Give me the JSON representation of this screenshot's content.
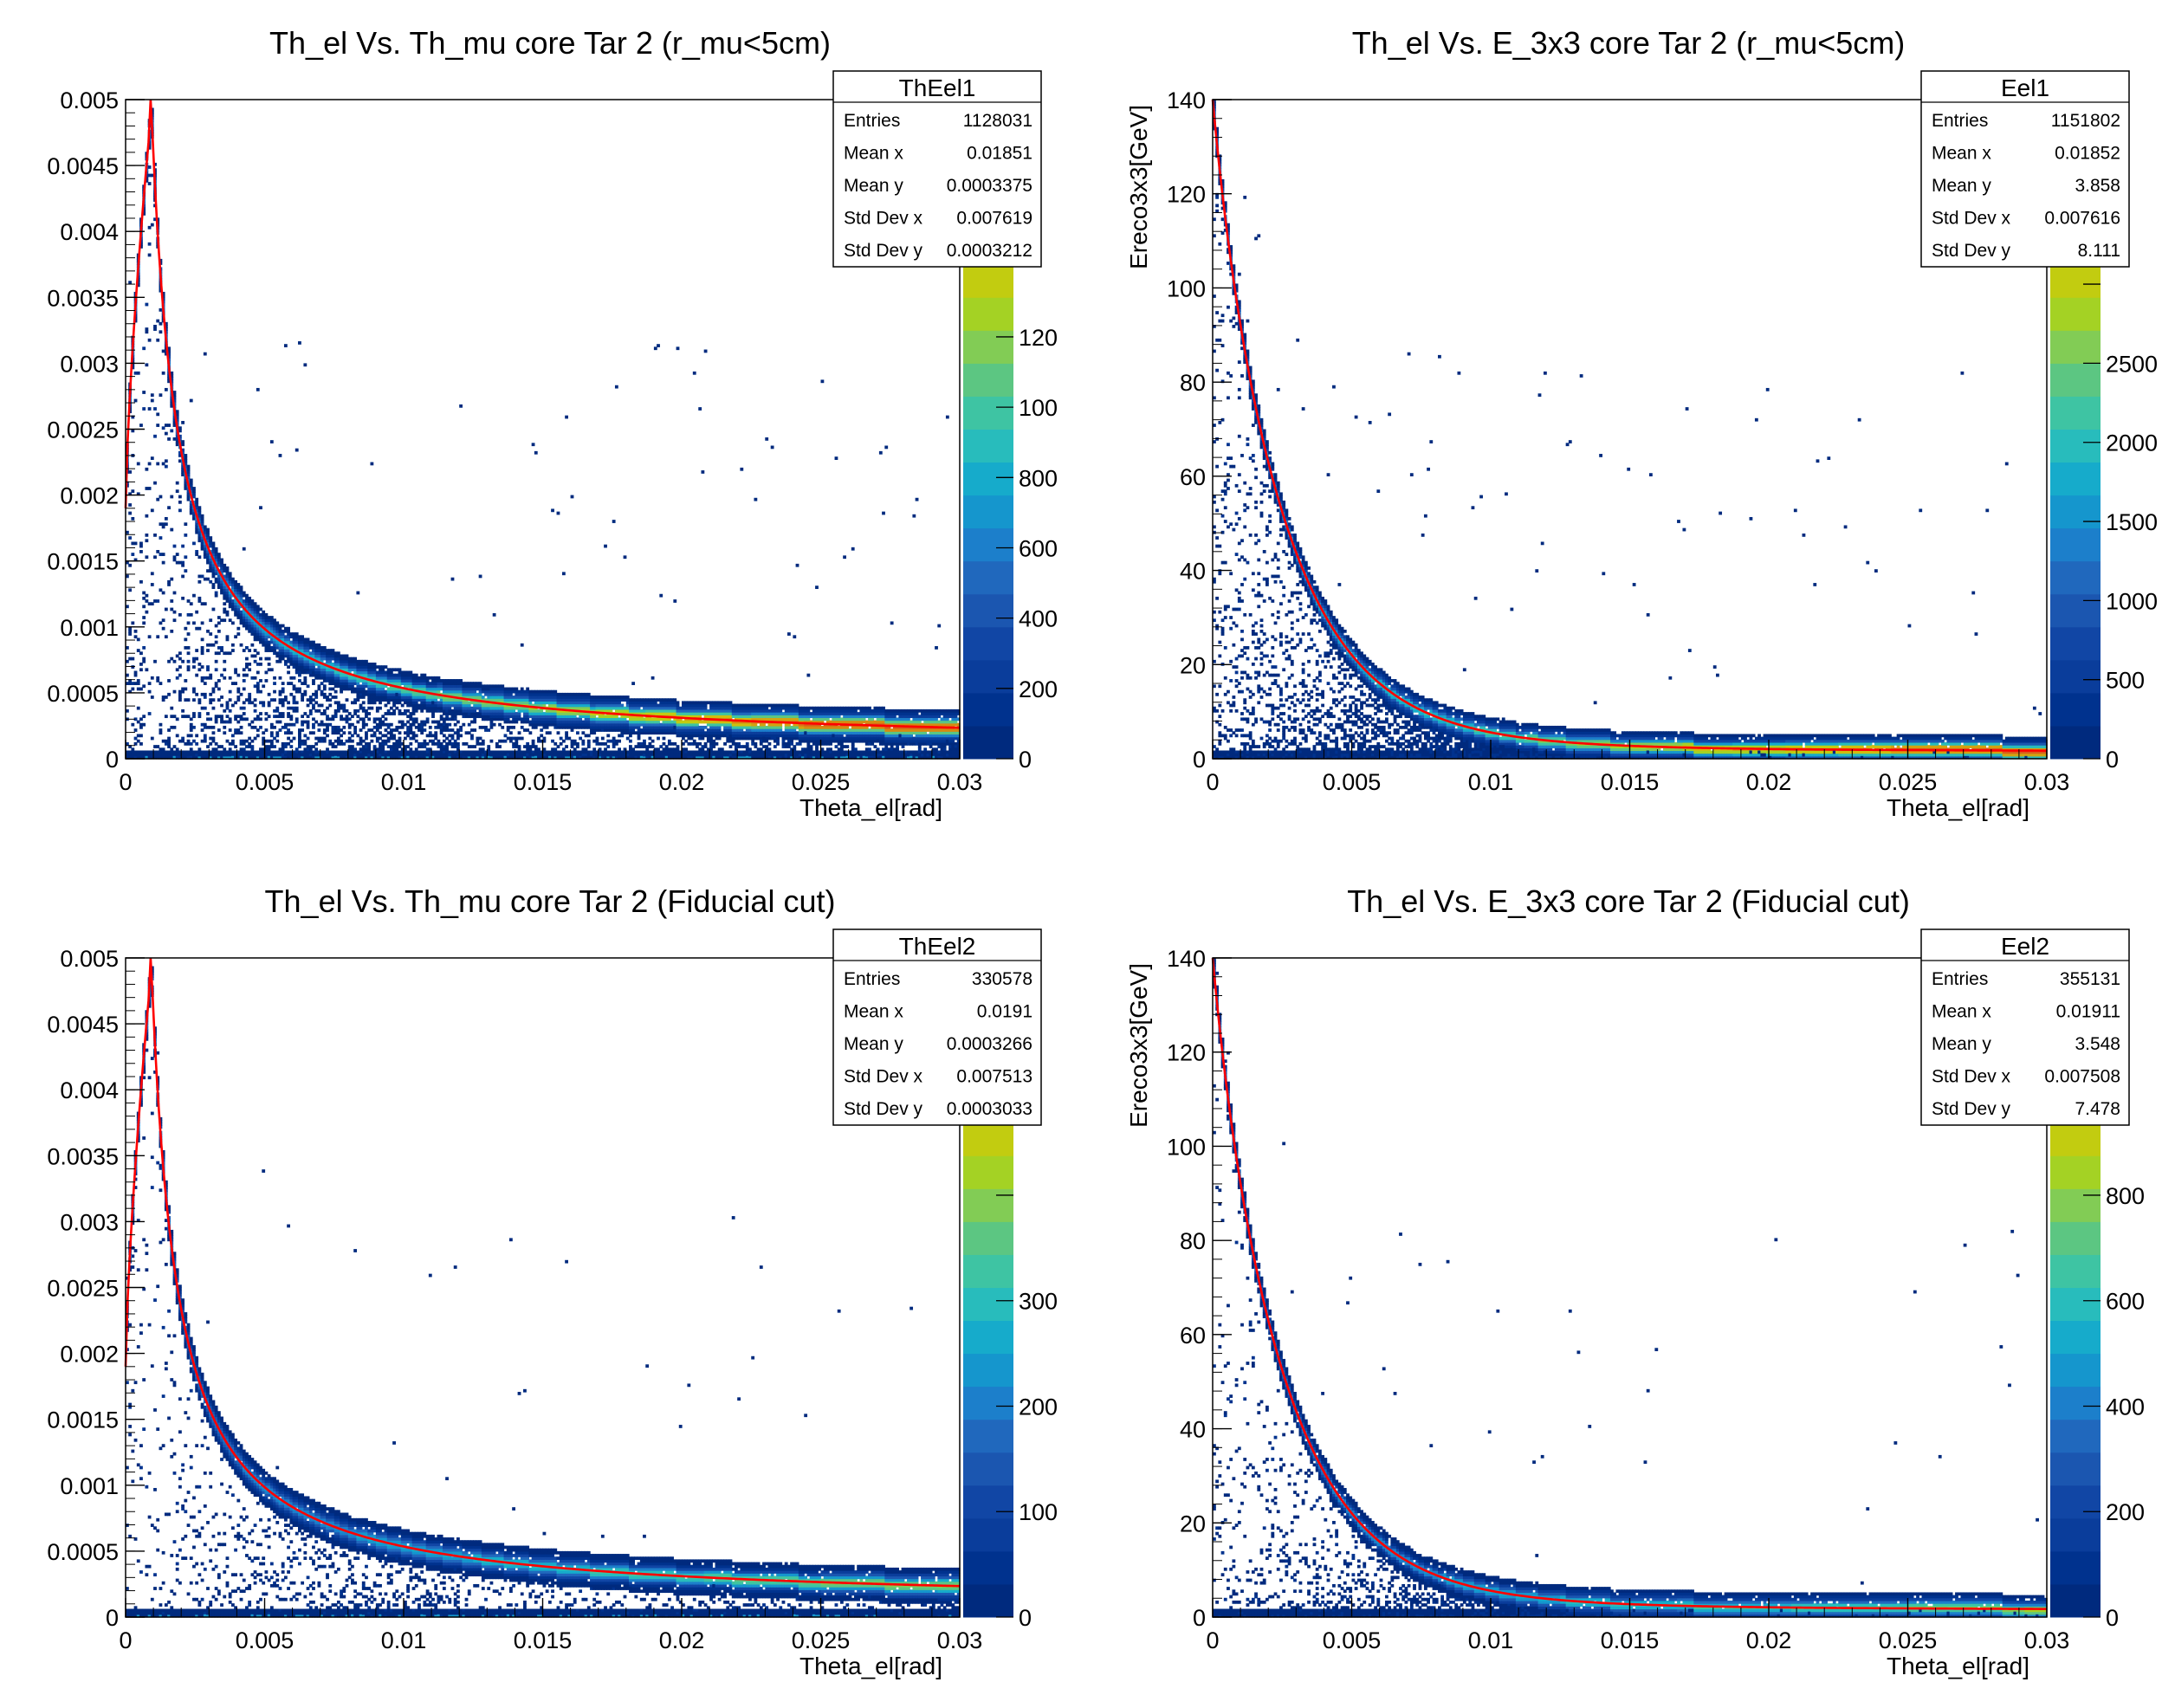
{
  "colors": {
    "fit_line": "#ff0000",
    "palette": [
      "#002a7e",
      "#00328e",
      "#0a3d9b",
      "#1146a5",
      "#1b56b0",
      "#2068bd",
      "#1c7fcb",
      "#1596cd",
      "#16abcb",
      "#28bcbc",
      "#3ec4a3",
      "#5cc682",
      "#82cc55",
      "#a4d224",
      "#c2cc10",
      "#cfbe0e",
      "#d3a20f",
      "#d68a11",
      "#d9741a",
      "#d85f1a"
    ]
  },
  "chart_data": [
    {
      "type": "heatmap",
      "title": "Th_el Vs. Th_mu core Tar 2 (r_mu<5cm)",
      "xlabel": "Theta_el[rad]",
      "ylabel": "",
      "xlim": [
        0,
        0.03
      ],
      "ylim": [
        0,
        0.005
      ],
      "x_ticks": [
        "0",
        "0.005",
        "0.01",
        "0.015",
        "0.02",
        "0.025",
        "0.03"
      ],
      "y_ticks": [
        "0",
        "0.0005",
        "0.001",
        "0.0015",
        "0.002",
        "0.0025",
        "0.003",
        "0.0035",
        "0.004",
        "0.0045",
        "0.005"
      ],
      "z_ticks": [
        "0",
        "200",
        "400",
        "600",
        "800",
        "100",
        "120",
        "",
        ""
      ],
      "stats": {
        "name": "ThEel1",
        "rows": [
          {
            "label": "Entries",
            "value": "1128031"
          },
          {
            "label": "Mean x",
            "value": "0.01851"
          },
          {
            "label": "Mean y",
            "value": "0.0003375"
          },
          {
            "label": "Std Dev x",
            "value": "0.007619"
          },
          {
            "label": "Std Dev y",
            "value": "0.0003212"
          }
        ]
      },
      "curve": "theta_mu",
      "density": 1.0
    },
    {
      "type": "heatmap",
      "title": "Th_el Vs. E_3x3 core Tar 2 (r_mu<5cm)",
      "xlabel": "Theta_el[rad]",
      "ylabel": "Ereco3x3[GeV]",
      "xlim": [
        0,
        0.03
      ],
      "ylim": [
        0,
        140
      ],
      "x_ticks": [
        "0",
        "0.005",
        "0.01",
        "0.015",
        "0.02",
        "0.025",
        "0.03"
      ],
      "y_ticks": [
        "0",
        "20",
        "40",
        "60",
        "80",
        "100",
        "120",
        "140"
      ],
      "z_ticks": [
        "0",
        "500",
        "1000",
        "1500",
        "2000",
        "2500",
        "",
        ""
      ],
      "stats": {
        "name": "Eel1",
        "rows": [
          {
            "label": "Entries",
            "value": "1151802"
          },
          {
            "label": "Mean x",
            "value": "0.01852"
          },
          {
            "label": "Mean y",
            "value": "3.858"
          },
          {
            "label": "Std Dev x",
            "value": "0.007616"
          },
          {
            "label": "Std Dev y",
            "value": "8.111"
          }
        ]
      },
      "curve": "energy",
      "density": 1.0
    },
    {
      "type": "heatmap",
      "title": "Th_el Vs. Th_mu core Tar 2 (Fiducial cut)",
      "xlabel": "Theta_el[rad]",
      "ylabel": "",
      "xlim": [
        0,
        0.03
      ],
      "ylim": [
        0,
        0.005
      ],
      "x_ticks": [
        "0",
        "0.005",
        "0.01",
        "0.015",
        "0.02",
        "0.025",
        "0.03"
      ],
      "y_ticks": [
        "0",
        "0.0005",
        "0.001",
        "0.0015",
        "0.002",
        "0.0025",
        "0.003",
        "0.0035",
        "0.004",
        "0.0045",
        "0.005"
      ],
      "z_ticks": [
        "0",
        "100",
        "200",
        "300",
        "",
        ""
      ],
      "stats": {
        "name": "ThEel2",
        "rows": [
          {
            "label": "Entries",
            "value": "330578"
          },
          {
            "label": "Mean x",
            "value": "0.0191"
          },
          {
            "label": "Mean y",
            "value": "0.0003266"
          },
          {
            "label": "Std Dev x",
            "value": "0.007513"
          },
          {
            "label": "Std Dev y",
            "value": "0.0003033"
          }
        ]
      },
      "curve": "theta_mu",
      "density": 0.45
    },
    {
      "type": "heatmap",
      "title": "Th_el Vs. E_3x3 core Tar 2 (Fiducial cut)",
      "xlabel": "Theta_el[rad]",
      "ylabel": "Ereco3x3[GeV]",
      "xlim": [
        0,
        0.03
      ],
      "ylim": [
        0,
        140
      ],
      "x_ticks": [
        "0",
        "0.005",
        "0.01",
        "0.015",
        "0.02",
        "0.025",
        "0.03"
      ],
      "y_ticks": [
        "0",
        "20",
        "40",
        "60",
        "80",
        "100",
        "120",
        "140"
      ],
      "z_ticks": [
        "0",
        "200",
        "400",
        "600",
        "800",
        ""
      ],
      "stats": {
        "name": "Eel2",
        "rows": [
          {
            "label": "Entries",
            "value": "355131"
          },
          {
            "label": "Mean x",
            "value": "0.01911"
          },
          {
            "label": "Mean y",
            "value": "3.548"
          },
          {
            "label": "Std Dev x",
            "value": "0.007508"
          },
          {
            "label": "Std Dev y",
            "value": "7.478"
          }
        ]
      },
      "curve": "energy",
      "density": 0.45
    }
  ]
}
